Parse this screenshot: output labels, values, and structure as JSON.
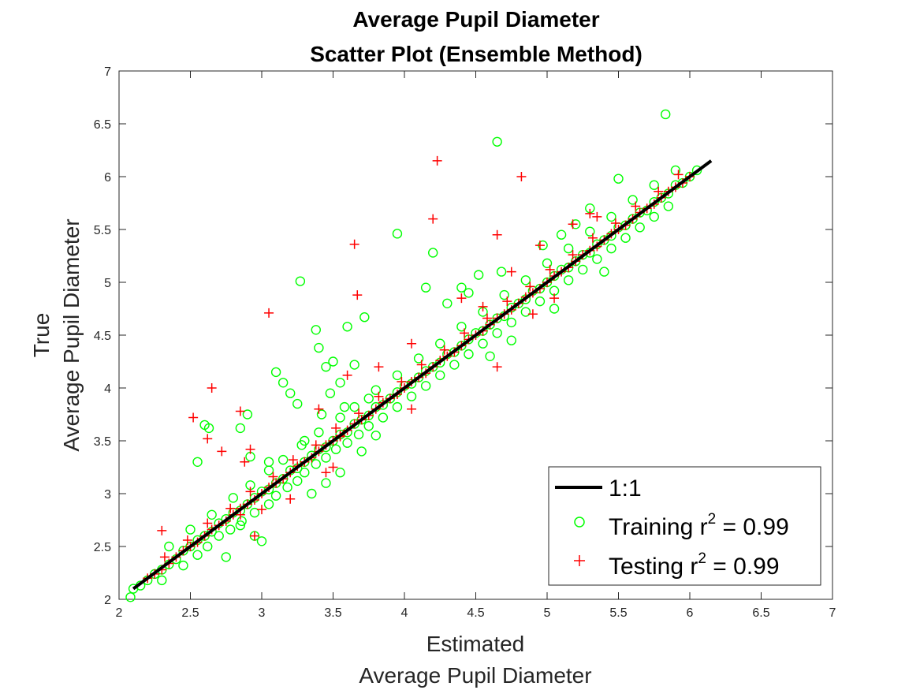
{
  "chart_data": {
    "type": "scatter",
    "title_lines": [
      "Average Pupil Diameter",
      "Scatter Plot (Ensemble Method)"
    ],
    "xlabel_lines": [
      "Estimated",
      "Average Pupil Diameter"
    ],
    "ylabel_lines": [
      "True",
      "Average Pupil Diameter"
    ],
    "xlim": [
      2,
      7
    ],
    "ylim": [
      2,
      7
    ],
    "xticks": [
      "2",
      "2.5",
      "3",
      "3.5",
      "4",
      "4.5",
      "5",
      "5.5",
      "6",
      "6.5",
      "7"
    ],
    "yticks": [
      "2",
      "2.5",
      "3",
      "3.5",
      "4",
      "4.5",
      "5",
      "5.5",
      "6",
      "6.5",
      "7"
    ],
    "grid": false,
    "legend_position": "bottom-right",
    "legend": [
      {
        "label": "1:1",
        "marker": "line",
        "color": "#000000"
      },
      {
        "label": "Training r",
        "sup": "2",
        "suffix": " = 0.99",
        "marker": "circle",
        "color": "#00ff00"
      },
      {
        "label": "Testing r",
        "sup": "2",
        "suffix": " = 0.99",
        "marker": "plus",
        "color": "#ff0000"
      }
    ],
    "reference_line": {
      "name": "1:1",
      "x": [
        2.1,
        6.15
      ],
      "y": [
        2.1,
        6.15
      ],
      "color": "#000000"
    },
    "series": [
      {
        "name": "Training",
        "marker": "circle",
        "color": "#00ff00",
        "x": [
          2.08,
          2.1,
          2.15,
          2.2,
          2.25,
          2.3,
          2.35,
          2.4,
          2.45,
          2.5,
          2.55,
          2.6,
          2.65,
          2.7,
          2.75,
          2.8,
          2.85,
          2.9,
          2.95,
          3.0,
          3.05,
          3.1,
          3.15,
          3.2,
          3.25,
          3.3,
          3.35,
          3.4,
          3.45,
          3.5,
          3.55,
          3.6,
          3.65,
          3.7,
          3.75,
          3.8,
          3.85,
          3.9,
          3.95,
          4.0,
          4.05,
          4.1,
          4.15,
          4.2,
          4.25,
          4.3,
          4.35,
          4.4,
          4.45,
          4.5,
          4.55,
          4.6,
          4.65,
          4.7,
          4.75,
          4.8,
          4.85,
          4.9,
          4.95,
          5.0,
          5.05,
          5.1,
          5.15,
          5.2,
          5.25,
          5.3,
          5.35,
          5.4,
          5.45,
          5.5,
          5.55,
          5.6,
          5.65,
          5.7,
          5.75,
          5.8,
          5.85,
          5.9,
          5.95,
          6.0,
          6.05,
          2.3,
          2.45,
          2.55,
          2.62,
          2.7,
          2.78,
          2.86,
          2.95,
          3.05,
          3.1,
          3.18,
          3.25,
          3.3,
          3.38,
          3.45,
          3.52,
          3.6,
          3.68,
          3.75,
          3.85,
          3.95,
          4.05,
          4.15,
          4.25,
          4.35,
          4.45,
          4.55,
          4.65,
          4.75,
          4.85,
          4.95,
          5.05,
          5.15,
          5.25,
          5.35,
          5.45,
          5.55,
          5.65,
          5.75,
          5.85,
          2.35,
          2.5,
          2.65,
          2.8,
          2.92,
          3.05,
          3.15,
          3.28,
          3.4,
          3.55,
          3.65,
          3.8,
          3.95,
          4.1,
          4.25,
          4.4,
          4.55,
          4.7,
          4.85,
          5.0,
          5.15,
          5.3,
          5.45,
          5.6,
          5.75,
          5.9,
          3.27,
          3.38,
          3.4,
          3.45,
          3.5,
          3.55,
          3.6,
          3.1,
          3.15,
          3.2,
          3.25,
          2.55,
          2.6,
          2.63,
          2.85,
          2.9,
          2.92,
          3.05,
          3.3,
          3.42,
          3.48,
          3.58,
          3.65,
          3.72,
          3.75,
          3.95,
          4.2,
          4.15,
          4.3,
          4.4,
          4.52,
          4.65,
          4.68,
          4.97,
          5.1,
          5.2,
          5.3,
          5.5,
          5.83,
          4.45,
          3.0,
          2.85,
          2.95,
          3.35,
          3.45,
          3.55,
          3.7,
          3.8,
          2.75,
          4.6,
          4.75,
          5.05,
          5.4
        ],
        "y": [
          2.02,
          2.1,
          2.13,
          2.18,
          2.24,
          2.28,
          2.33,
          2.38,
          2.46,
          2.5,
          2.56,
          2.6,
          2.64,
          2.72,
          2.76,
          2.82,
          2.84,
          2.9,
          2.96,
          3.02,
          3.04,
          3.1,
          3.14,
          3.22,
          3.24,
          3.3,
          3.36,
          3.42,
          3.44,
          3.5,
          3.56,
          3.58,
          3.66,
          3.7,
          3.74,
          3.82,
          3.84,
          3.9,
          3.96,
          4.02,
          4.04,
          4.1,
          4.16,
          4.2,
          4.24,
          4.32,
          4.34,
          4.4,
          4.46,
          4.52,
          4.54,
          4.6,
          4.66,
          4.68,
          4.76,
          4.8,
          4.84,
          4.92,
          4.94,
          5.0,
          5.06,
          5.12,
          5.14,
          5.2,
          5.26,
          5.28,
          5.36,
          5.4,
          5.44,
          5.52,
          5.54,
          5.6,
          5.66,
          5.68,
          5.76,
          5.8,
          5.84,
          5.92,
          5.94,
          6.0,
          6.06,
          2.18,
          2.32,
          2.42,
          2.5,
          2.6,
          2.66,
          2.74,
          2.82,
          2.9,
          2.98,
          3.06,
          3.12,
          3.2,
          3.28,
          3.34,
          3.42,
          3.48,
          3.56,
          3.64,
          3.72,
          3.82,
          3.92,
          4.02,
          4.12,
          4.22,
          4.32,
          4.42,
          4.52,
          4.62,
          4.72,
          4.82,
          4.92,
          5.02,
          5.12,
          5.22,
          5.32,
          5.42,
          5.52,
          5.62,
          5.72,
          2.5,
          2.66,
          2.8,
          2.96,
          3.08,
          3.22,
          3.32,
          3.46,
          3.58,
          3.72,
          3.82,
          3.98,
          4.12,
          4.28,
          4.42,
          4.58,
          4.72,
          4.88,
          5.02,
          5.18,
          5.32,
          5.48,
          5.62,
          5.78,
          5.92,
          6.06,
          5.01,
          4.55,
          4.38,
          4.2,
          4.25,
          4.05,
          4.58,
          4.15,
          4.05,
          3.95,
          3.85,
          3.3,
          3.65,
          3.62,
          3.62,
          3.75,
          3.35,
          3.3,
          3.5,
          3.75,
          3.95,
          3.82,
          4.22,
          4.67,
          3.9,
          5.46,
          5.28,
          4.95,
          4.8,
          4.95,
          5.07,
          6.33,
          5.1,
          5.35,
          5.45,
          5.55,
          5.7,
          5.98,
          6.59,
          4.9,
          2.55,
          2.7,
          2.6,
          3.0,
          3.1,
          3.2,
          3.4,
          3.55,
          2.4,
          4.3,
          4.45,
          4.75,
          5.1
        ]
      },
      {
        "name": "Testing",
        "marker": "plus",
        "color": "#ff0000",
        "x": [
          2.2,
          2.25,
          2.3,
          2.35,
          2.4,
          2.45,
          2.5,
          2.55,
          2.6,
          2.65,
          2.7,
          2.75,
          2.8,
          2.85,
          2.9,
          2.95,
          3.0,
          3.05,
          3.1,
          3.15,
          3.2,
          3.25,
          3.3,
          3.35,
          3.4,
          3.45,
          3.5,
          3.55,
          3.6,
          3.65,
          3.7,
          3.75,
          3.8,
          3.85,
          3.9,
          3.95,
          4.0,
          4.05,
          4.1,
          4.15,
          4.2,
          4.25,
          4.3,
          4.35,
          4.4,
          4.45,
          4.5,
          4.55,
          4.6,
          4.65,
          4.7,
          4.75,
          4.8,
          4.85,
          4.9,
          4.95,
          5.0,
          5.05,
          5.1,
          5.15,
          5.2,
          5.25,
          5.3,
          5.35,
          5.4,
          5.45,
          5.5,
          5.55,
          5.6,
          5.65,
          5.7,
          5.75,
          5.8,
          5.85,
          5.9,
          5.95,
          6.0,
          2.32,
          2.48,
          2.62,
          2.78,
          2.92,
          3.08,
          3.22,
          3.38,
          3.52,
          3.68,
          3.82,
          3.98,
          4.12,
          4.28,
          4.42,
          4.58,
          4.72,
          4.88,
          5.02,
          5.18,
          5.32,
          5.48,
          5.62,
          5.78,
          5.92,
          4.23,
          4.2,
          3.65,
          3.67,
          3.05,
          2.65,
          2.52,
          2.85,
          2.88,
          2.92,
          2.72,
          2.62,
          2.3,
          3.4,
          3.82,
          3.6,
          4.55,
          4.65,
          4.05,
          4.4,
          4.75,
          4.95,
          5.18,
          5.3,
          4.82,
          5.35,
          3.55,
          2.85,
          4.65,
          4.05,
          4.9,
          5.05,
          3.0,
          3.2,
          3.5,
          2.95,
          3.45
        ],
        "y": [
          2.2,
          2.24,
          2.28,
          2.34,
          2.4,
          2.46,
          2.5,
          2.54,
          2.6,
          2.66,
          2.7,
          2.74,
          2.8,
          2.86,
          2.9,
          2.94,
          3.0,
          3.06,
          3.1,
          3.14,
          3.2,
          3.26,
          3.3,
          3.34,
          3.4,
          3.46,
          3.5,
          3.54,
          3.6,
          3.66,
          3.7,
          3.74,
          3.8,
          3.86,
          3.9,
          3.94,
          4.0,
          4.06,
          4.1,
          4.14,
          4.2,
          4.26,
          4.3,
          4.34,
          4.4,
          4.46,
          4.5,
          4.54,
          4.6,
          4.66,
          4.7,
          4.74,
          4.8,
          4.86,
          4.9,
          4.94,
          5.0,
          5.06,
          5.1,
          5.14,
          5.2,
          5.26,
          5.3,
          5.34,
          5.4,
          5.46,
          5.5,
          5.54,
          5.6,
          5.66,
          5.7,
          5.74,
          5.8,
          5.86,
          5.9,
          5.94,
          6.0,
          2.4,
          2.56,
          2.72,
          2.86,
          3.02,
          3.16,
          3.32,
          3.46,
          3.62,
          3.76,
          3.92,
          4.06,
          4.22,
          4.36,
          4.52,
          4.66,
          4.82,
          4.96,
          5.12,
          5.26,
          5.42,
          5.56,
          5.72,
          5.86,
          6.02,
          6.15,
          5.6,
          5.36,
          4.88,
          4.71,
          4.0,
          3.72,
          3.78,
          3.3,
          3.42,
          3.4,
          3.52,
          2.65,
          3.8,
          4.2,
          4.12,
          4.77,
          5.45,
          4.42,
          4.85,
          5.1,
          5.35,
          5.55,
          5.65,
          6.0,
          5.62,
          3.55,
          2.8,
          4.2,
          3.8,
          4.7,
          4.85,
          2.85,
          2.95,
          3.25,
          2.6,
          3.2
        ]
      }
    ]
  }
}
